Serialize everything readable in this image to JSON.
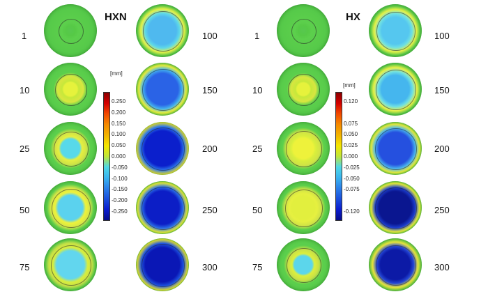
{
  "panels": [
    {
      "title": "HXN",
      "left_labels": [
        "1",
        "10",
        "25",
        "50",
        "75"
      ],
      "right_labels": [
        "100",
        "150",
        "200",
        "250",
        "300"
      ],
      "scale": {
        "unit": "[mm]",
        "ticks": [
          "0.250",
          "0.200",
          "0.150",
          "0.100",
          "0.050",
          "0.000",
          "-0.050",
          "-0.100",
          "-0.150",
          "-0.200",
          "-0.250"
        ]
      },
      "left_disks": [
        {
          "core": "#5ed160",
          "halo": "#57c84f",
          "ring": "#56c946",
          "size": 0.0
        },
        {
          "core": "#e6f23c",
          "halo": "#c6e83a",
          "ring": "#d9e640",
          "size": 0.3
        },
        {
          "core": "#58d9e9",
          "halo": "#e6f040",
          "ring": "#cfe246",
          "size": 0.42
        },
        {
          "core": "#5bd2ee",
          "halo": "#eff23a",
          "ring": "#d4e547",
          "size": 0.55
        },
        {
          "core": "#62d6ee",
          "halo": "#d9ee3d",
          "ring": "#c6e046",
          "size": 0.62
        }
      ],
      "right_disks": [
        {
          "core": "#4fb9ef",
          "halo": "#5fd9e8",
          "ring": "#e6f048",
          "size": 0.62
        },
        {
          "core": "#2a63e6",
          "halo": "#43b1ee",
          "ring": "#eef23d",
          "size": 0.7
        },
        {
          "core": "#0b1fcc",
          "halo": "#2d78eb",
          "ring": "#f2e63a",
          "size": 0.78
        },
        {
          "core": "#0c1ec6",
          "halo": "#2b6fe6",
          "ring": "#eef23b",
          "size": 0.74
        },
        {
          "core": "#0a17b5",
          "halo": "#1f55e0",
          "ring": "#f0e83a",
          "size": 0.76
        }
      ]
    },
    {
      "title": "HX",
      "left_labels": [
        "1",
        "10",
        "25",
        "50",
        "75"
      ],
      "right_labels": [
        "100",
        "150",
        "200",
        "250",
        "300"
      ],
      "scale": {
        "unit": "[mm]",
        "ticks": [
          "0.120",
          "",
          "0.075",
          "0.050",
          "0.025",
          "0.000",
          "-0.025",
          "-0.050",
          "-0.075",
          "",
          "-0.120"
        ]
      },
      "left_disks": [
        {
          "core": "#5ed160",
          "halo": "#57c84f",
          "ring": "#56c946",
          "size": 0.0
        },
        {
          "core": "#e6f23c",
          "halo": "#c6e83a",
          "ring": "#d9e640",
          "size": 0.28
        },
        {
          "core": "#eef23b",
          "halo": "#d8ee3c",
          "ring": "#cfe246",
          "size": 0.45
        },
        {
          "core": "#e2ef3e",
          "halo": "#e6f040",
          "ring": "#cfe246",
          "size": 0.5
        },
        {
          "core": "#5cd6eb",
          "halo": "#ddef3d",
          "ring": "#c9e046",
          "size": 0.4
        }
      ],
      "right_disks": [
        {
          "core": "#55c7ef",
          "halo": "#6ee0e4",
          "ring": "#e6f048",
          "size": 0.6
        },
        {
          "core": "#45b6ee",
          "halo": "#6fe0e3",
          "ring": "#eaf046",
          "size": 0.62
        },
        {
          "core": "#2550df",
          "halo": "#48b3ee",
          "ring": "#eef23d",
          "size": 0.72
        },
        {
          "core": "#0a1690",
          "halo": "#1d3fcf",
          "ring": "#eef23b",
          "size": 0.72
        },
        {
          "core": "#0c1aa6",
          "halo": "#2548d6",
          "ring": "#eae63c",
          "size": 0.66
        }
      ]
    }
  ],
  "colorbar_colors": [
    "#8b0000",
    "#d40000",
    "#f24a00",
    "#f58a00",
    "#f3b400",
    "#f4e600",
    "#bfe63a",
    "#4fd8e6",
    "#3ab4ef",
    "#2a7fe9",
    "#1a4fdc",
    "#0b1ccf",
    "#060c8a"
  ]
}
